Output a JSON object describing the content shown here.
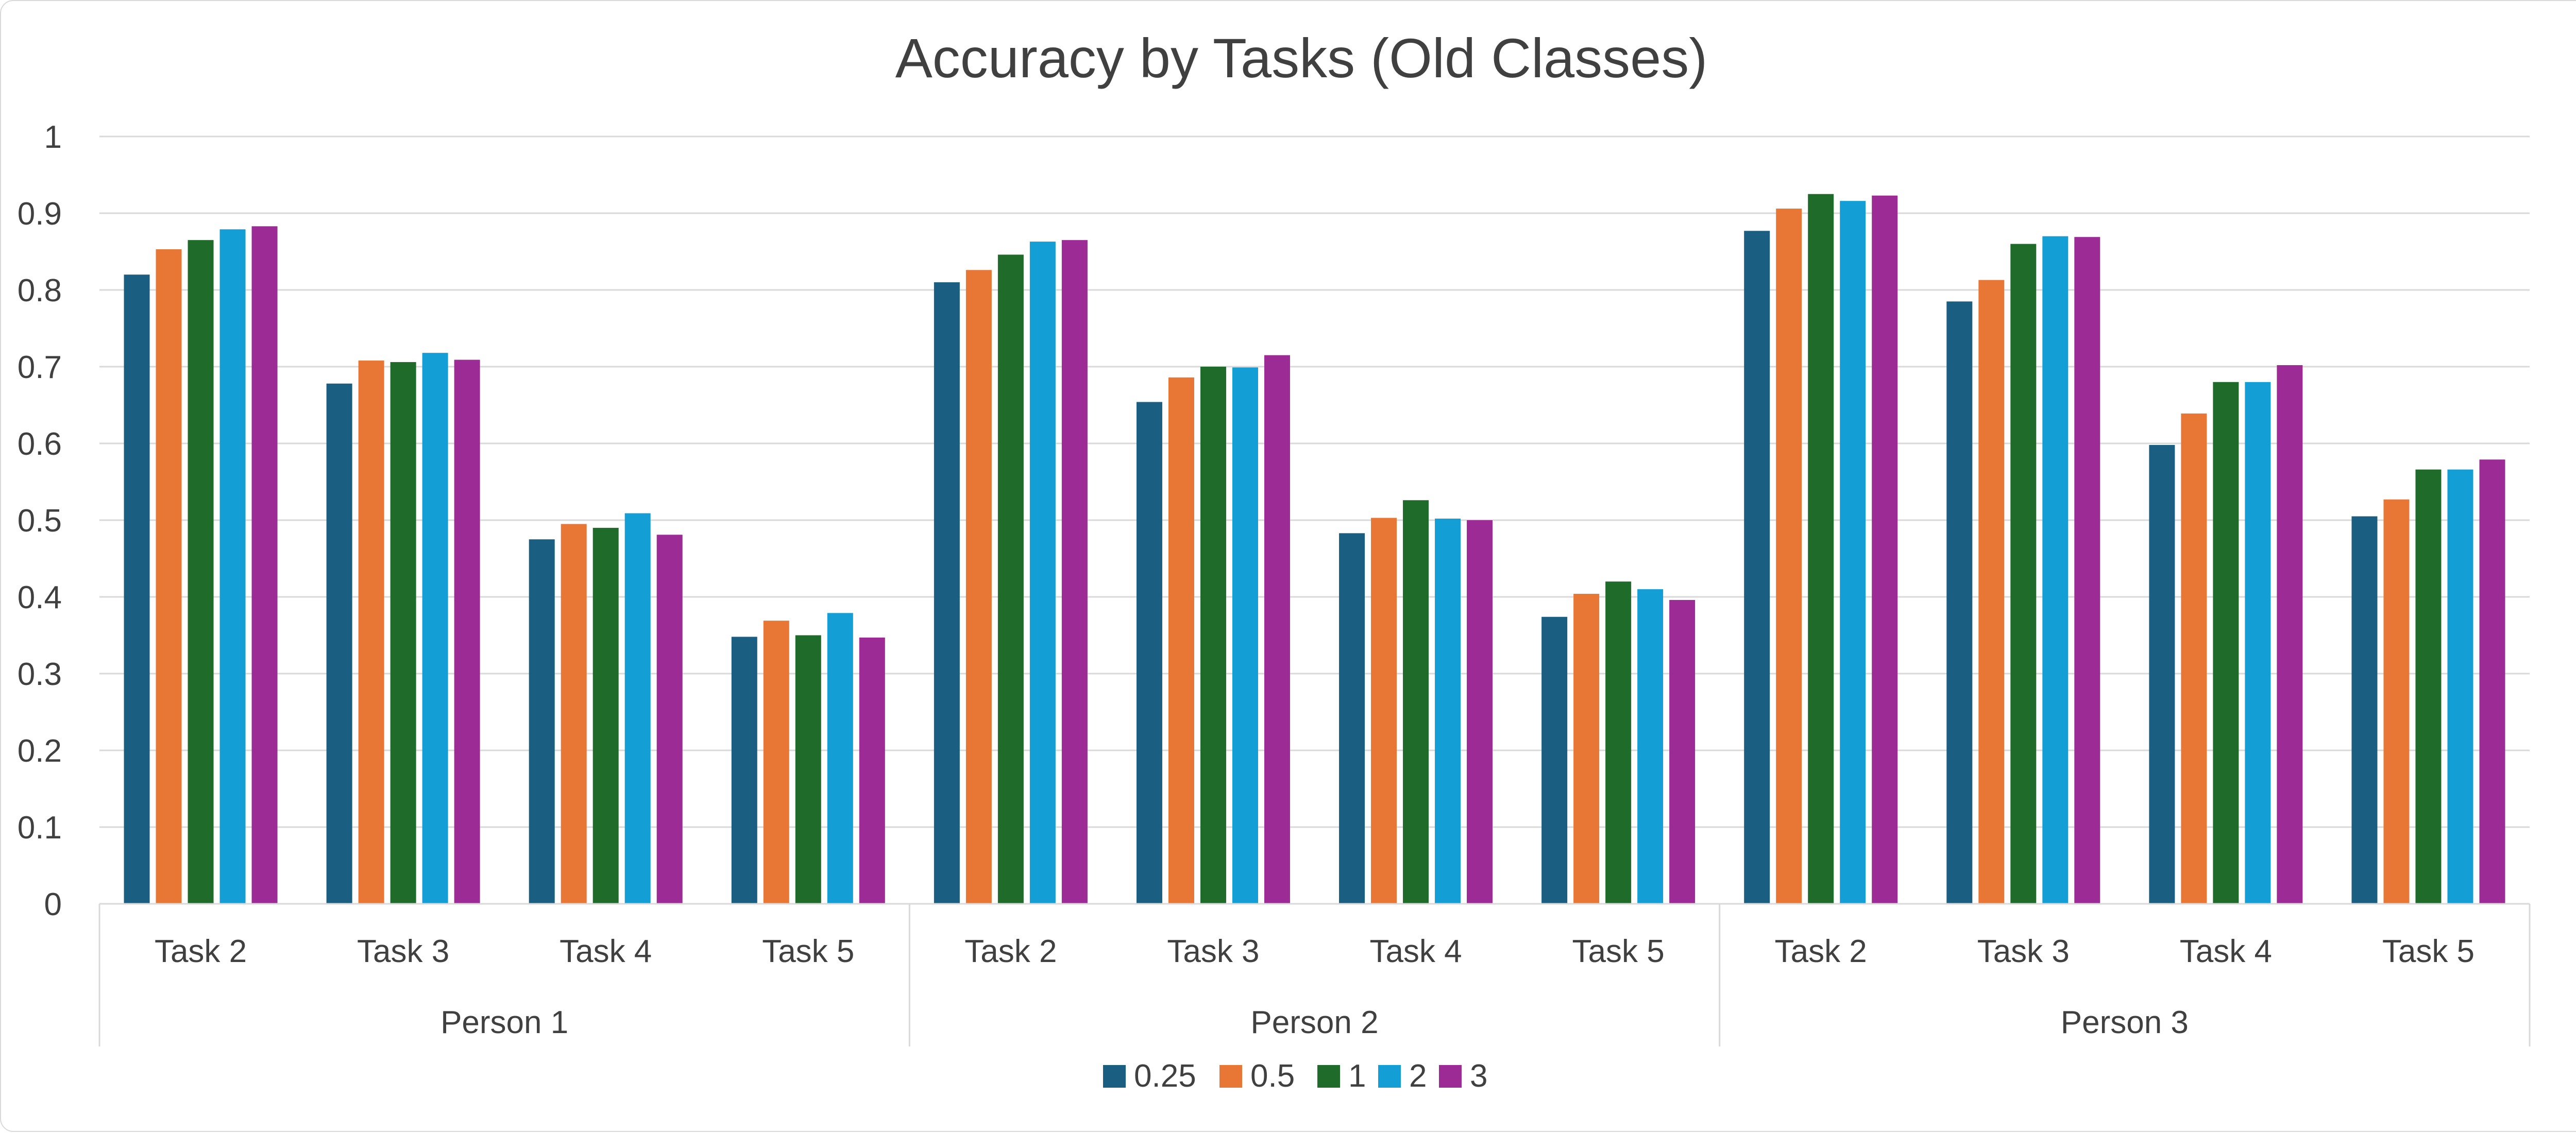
{
  "chart_data": {
    "type": "bar",
    "title": "Accuracy by Tasks (Old Classes)",
    "xlabel": "",
    "ylabel": "",
    "ylim": [
      0,
      1
    ],
    "yticks": [
      "0",
      "0.1",
      "0.2",
      "0.3",
      "0.4",
      "0.5",
      "0.6",
      "0.7",
      "0.8",
      "0.9",
      "1"
    ],
    "groups": [
      "Person 1",
      "Person 2",
      "Person 3"
    ],
    "categories": [
      "Task 2",
      "Task 3",
      "Task 4",
      "Task 5",
      "Task 2",
      "Task 3",
      "Task 4",
      "Task 5",
      "Task 2",
      "Task 3",
      "Task 4",
      "Task 5"
    ],
    "series": [
      {
        "name": "0.25",
        "color": "#1a5f82",
        "values": [
          0.82,
          0.678,
          0.475,
          0.348,
          0.81,
          0.654,
          0.483,
          0.374,
          0.877,
          0.785,
          0.598,
          0.505
        ]
      },
      {
        "name": "0.5",
        "color": "#e87735",
        "values": [
          0.853,
          0.708,
          0.495,
          0.369,
          0.826,
          0.686,
          0.503,
          0.404,
          0.906,
          0.813,
          0.639,
          0.527
        ]
      },
      {
        "name": "1",
        "color": "#1e6b2a",
        "values": [
          0.865,
          0.706,
          0.49,
          0.35,
          0.846,
          0.7,
          0.526,
          0.42,
          0.925,
          0.86,
          0.68,
          0.566
        ]
      },
      {
        "name": "2",
        "color": "#139fd6",
        "values": [
          0.879,
          0.718,
          0.509,
          0.379,
          0.863,
          0.699,
          0.502,
          0.41,
          0.916,
          0.87,
          0.68,
          0.566
        ]
      },
      {
        "name": "3",
        "color": "#9c2b95",
        "values": [
          0.883,
          0.709,
          0.481,
          0.347,
          0.865,
          0.715,
          0.5,
          0.396,
          0.923,
          0.869,
          0.702,
          0.579
        ]
      }
    ],
    "grid": true,
    "legend_position": "bottom"
  }
}
